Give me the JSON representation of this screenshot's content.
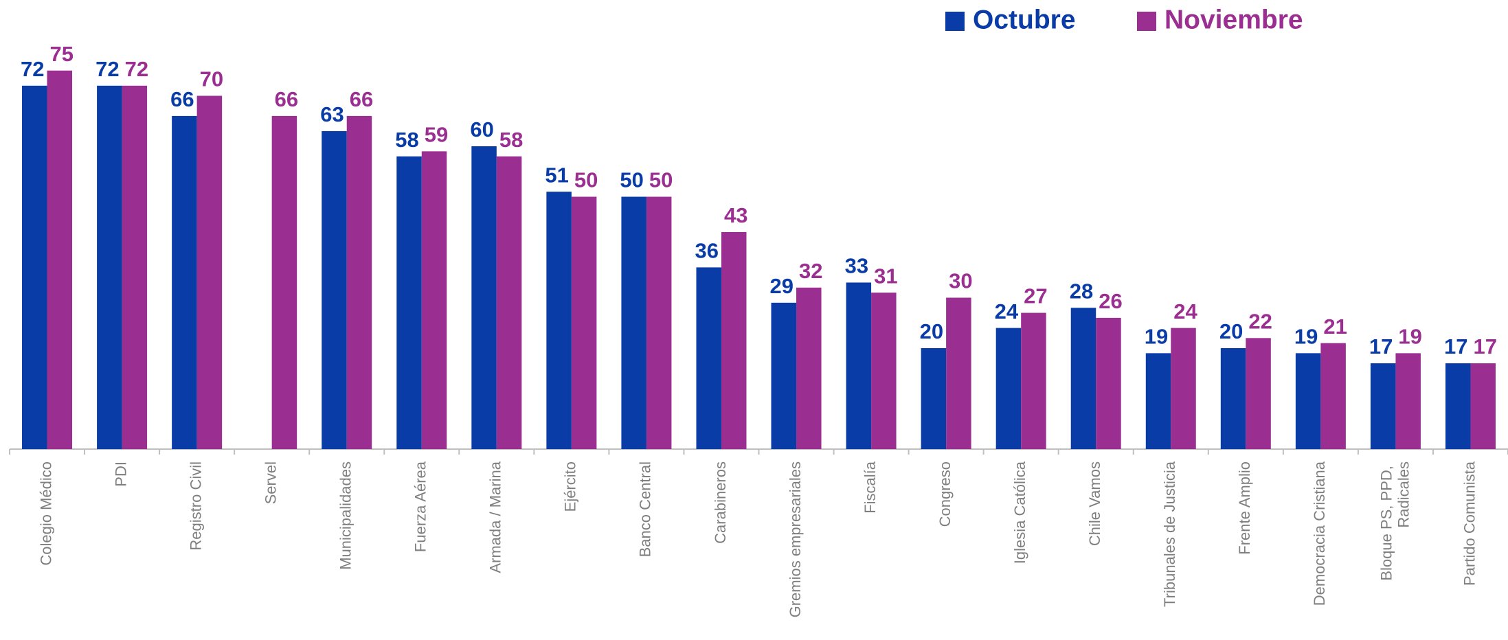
{
  "chart_data": {
    "type": "bar",
    "categories": [
      "Colegio Médico",
      "PDI",
      "Registro Civil",
      "Servel",
      "Municipalidades",
      "Fuerza Aérea",
      "Armada / Marina",
      "Ejército",
      "Banco Central",
      "Carabineros",
      "Gremios empresariales",
      "Fiscalía",
      "Congreso",
      "Iglesia Católica",
      "Chile Vamos",
      "Tribunales de Justicia",
      "Frente Amplio",
      "Democracia Cristiana",
      "Bloque PS, PPD, Radicales",
      "Partido Comunista"
    ],
    "series": [
      {
        "name": "Octubre",
        "color": "#0a3ca8",
        "values": [
          72,
          72,
          66,
          null,
          63,
          58,
          60,
          51,
          50,
          36,
          29,
          33,
          20,
          24,
          28,
          19,
          20,
          19,
          17,
          17
        ]
      },
      {
        "name": "Noviembre",
        "color": "#9b2f91",
        "values": [
          75,
          72,
          70,
          66,
          66,
          59,
          58,
          50,
          50,
          43,
          32,
          31,
          30,
          27,
          26,
          24,
          22,
          21,
          19,
          17
        ]
      }
    ],
    "legend": "top-right"
  }
}
